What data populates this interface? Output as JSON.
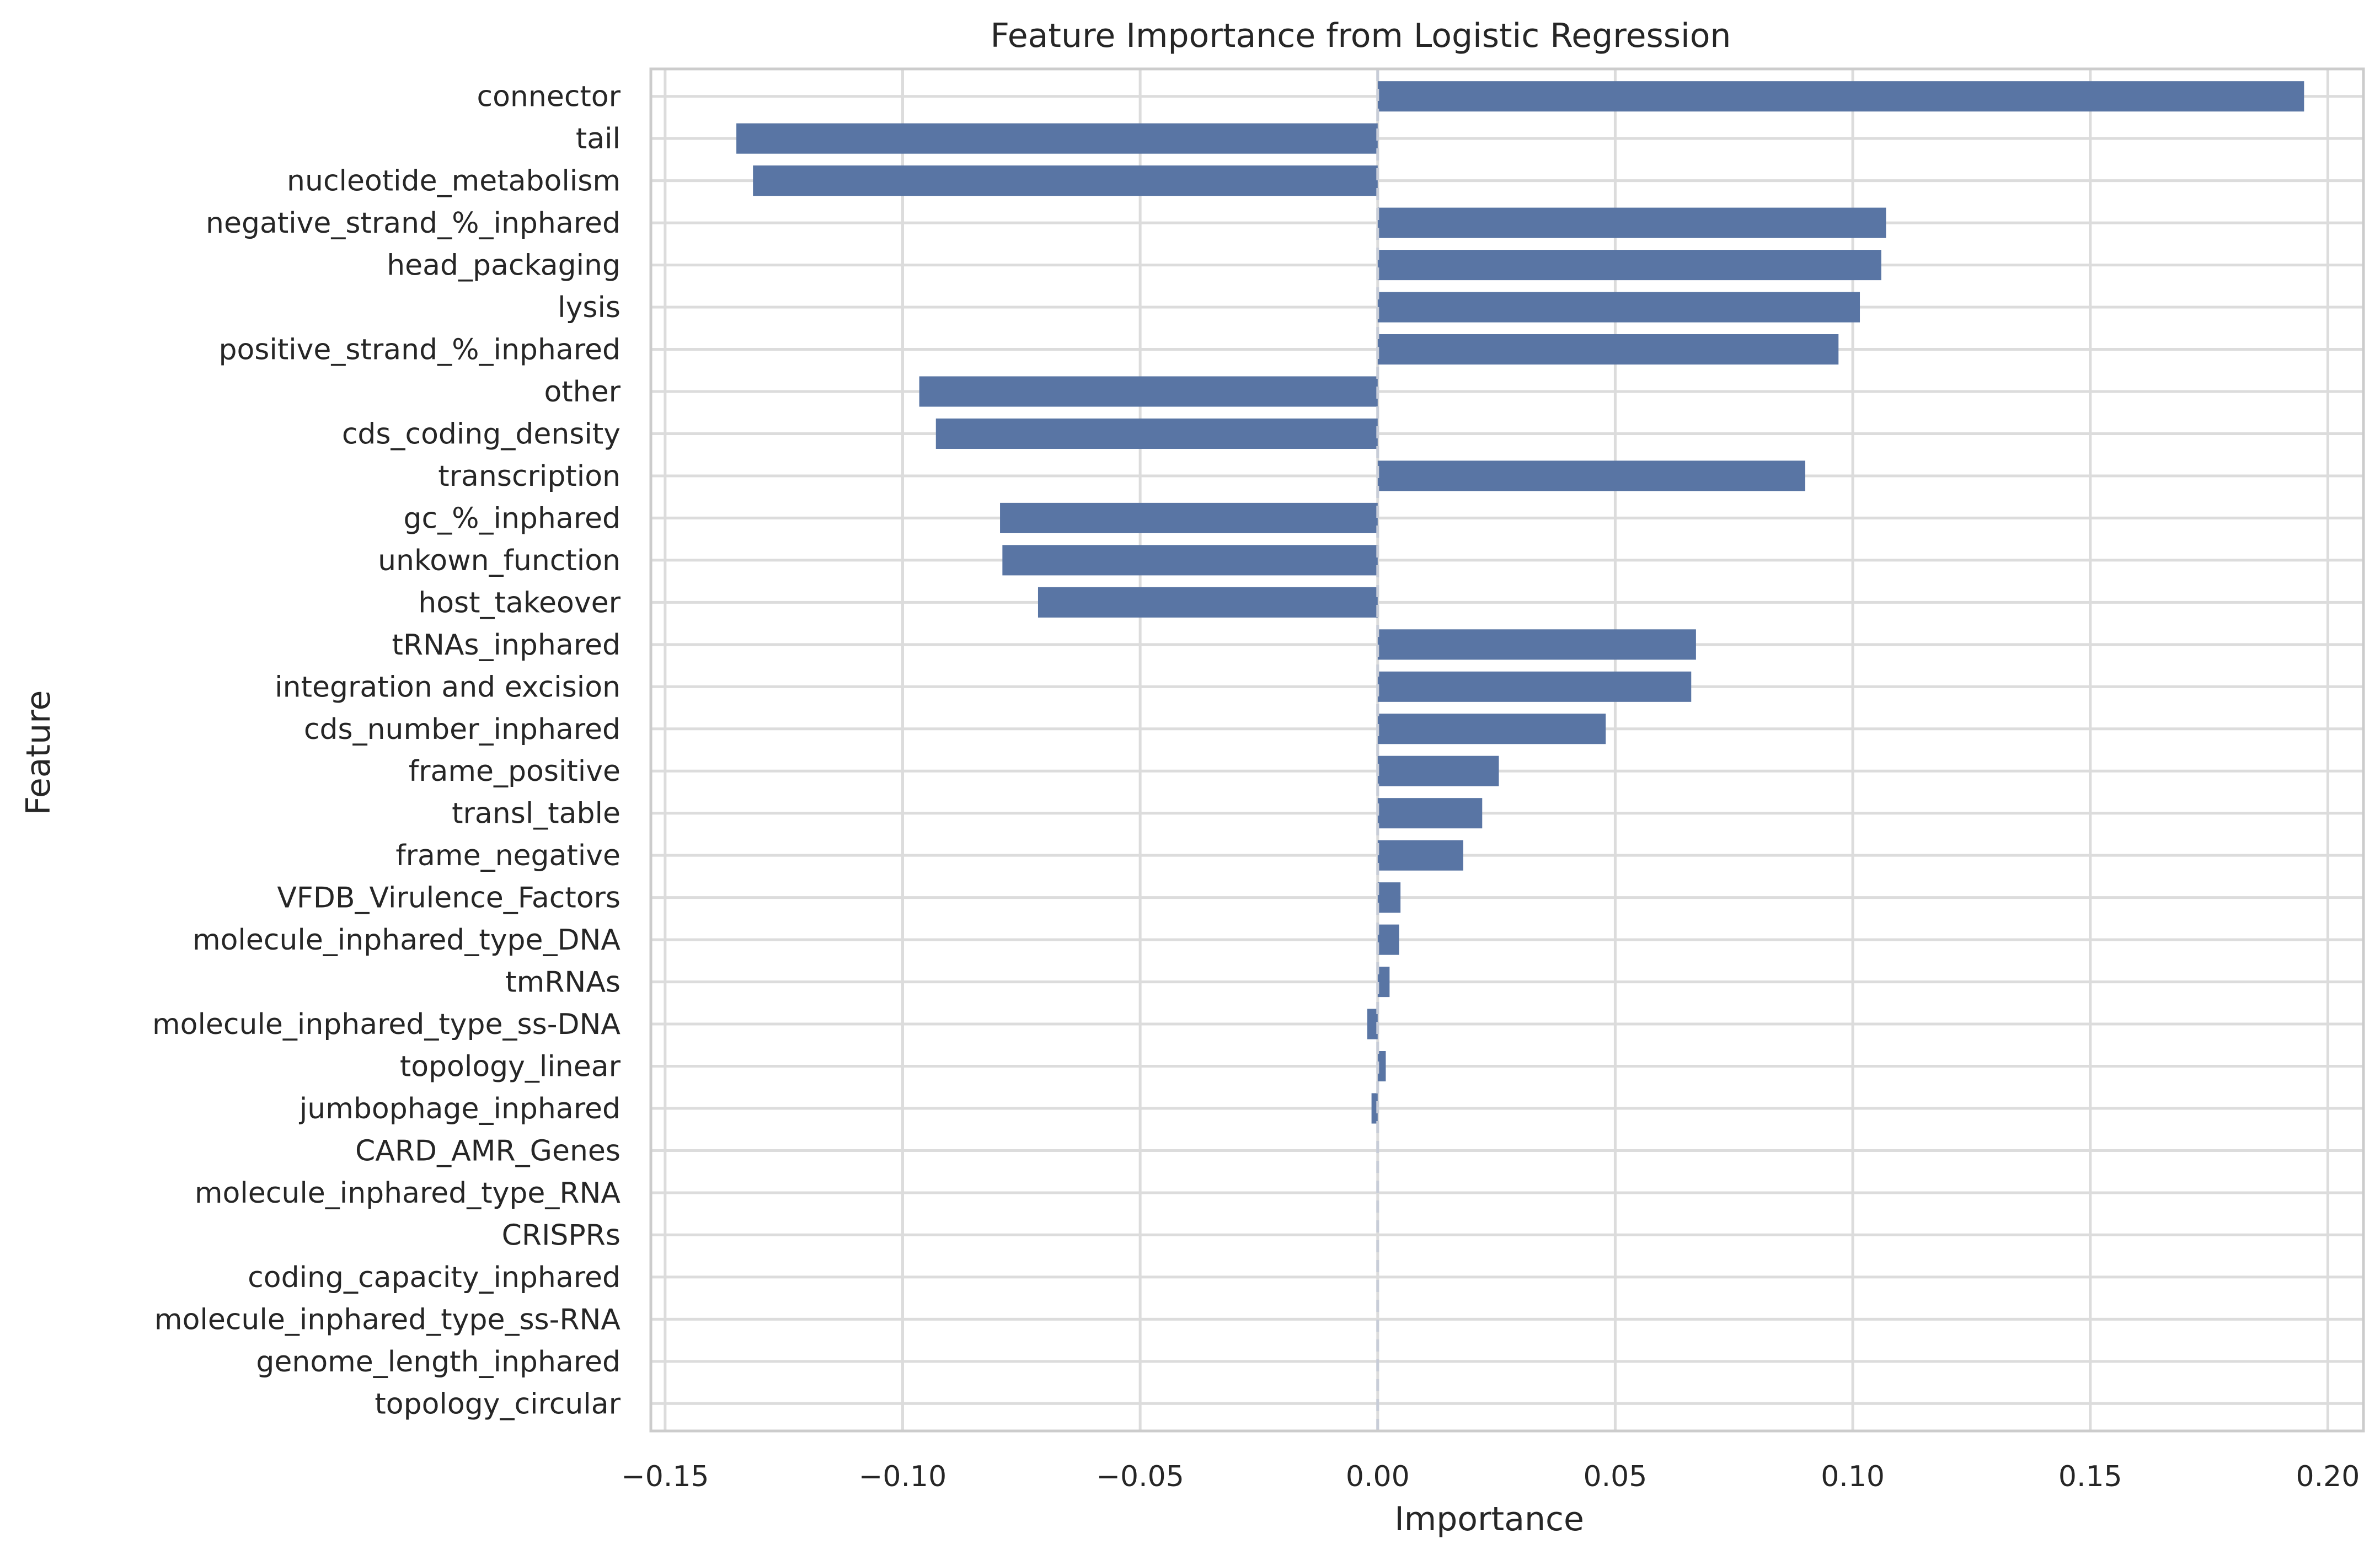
{
  "chart_data": {
    "type": "bar",
    "orientation": "horizontal",
    "title": "Feature Importance from Logistic Regression",
    "xlabel": "Importance",
    "ylabel": "Feature",
    "xlim": [
      -0.153,
      0.2075
    ],
    "xticks": [
      -0.15,
      -0.1,
      -0.05,
      0.0,
      0.05,
      0.1,
      0.15,
      0.2
    ],
    "xtick_labels": [
      "−0.15",
      "−0.10",
      "−0.05",
      "0.00",
      "0.05",
      "0.10",
      "0.15",
      "0.20"
    ],
    "grid": true,
    "bar_color": "#5975a4",
    "grid_color": "#dcdcdc",
    "spine_color": "#cccccc",
    "categories": [
      "connector",
      "tail",
      "nucleotide_metabolism",
      "negative_strand_%_inphared",
      "head_packaging",
      "lysis",
      "positive_strand_%_inphared",
      "other",
      "cds_coding_density",
      "transcription",
      "gc_%_inphared",
      "unkown_function",
      "host_takeover",
      "tRNAs_inphared",
      "integration and excision",
      "cds_number_inphared",
      "frame_positive",
      "transl_table",
      "frame_negative",
      "VFDB_Virulence_Factors",
      "molecule_inphared_type_DNA",
      "tmRNAs",
      "molecule_inphared_type_ss-DNA",
      "topology_linear",
      "jumbophage_inphared",
      "CARD_AMR_Genes",
      "molecule_inphared_type_RNA",
      "CRISPRs",
      "coding_capacity_inphared",
      "molecule_inphared_type_ss-RNA",
      "genome_length_inphared",
      "topology_circular"
    ],
    "values": [
      0.195,
      -0.135,
      -0.1315,
      0.107,
      0.106,
      0.1015,
      0.097,
      -0.0965,
      -0.093,
      0.09,
      -0.0795,
      -0.079,
      -0.0715,
      0.067,
      0.066,
      0.048,
      0.0255,
      0.022,
      0.018,
      0.0048,
      0.0045,
      0.0025,
      -0.0022,
      0.0017,
      -0.0013,
      0.0,
      0.0,
      0.0,
      0.0,
      0.0,
      0.0,
      0.0
    ]
  }
}
